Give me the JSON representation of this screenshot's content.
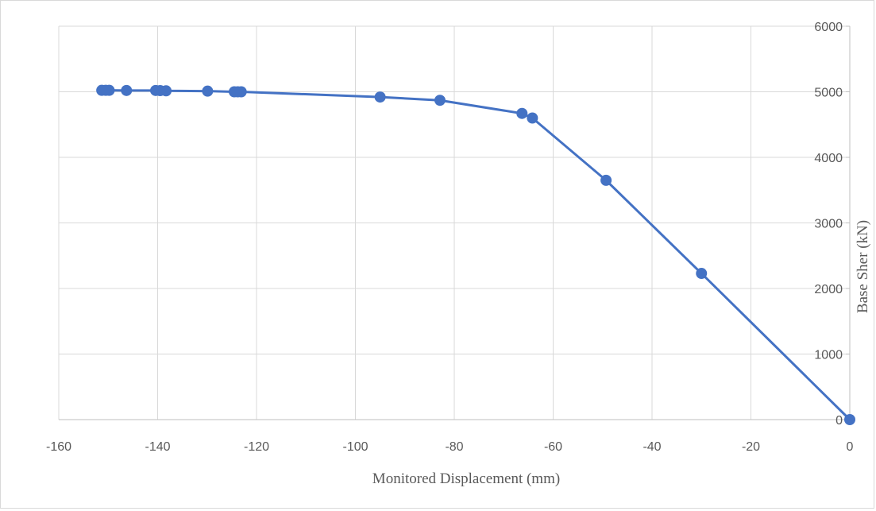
{
  "chart_data": {
    "type": "scatter",
    "xlabel": "Monitored Displacement (mm)",
    "ylabel": "Base Sher (kN)",
    "xlim": [
      -160,
      0
    ],
    "ylim": [
      0,
      6000
    ],
    "x_ticks": [
      -160,
      -140,
      -120,
      -100,
      -80,
      -60,
      -40,
      -20,
      0
    ],
    "y_ticks": [
      0,
      1000,
      2000,
      3000,
      4000,
      5000,
      6000
    ],
    "grid": true,
    "legend": "none",
    "y_axis_position": "right",
    "series_color": "#4472c4",
    "series": [
      {
        "x": [
          0,
          -30,
          -49.3,
          -64.2,
          -66.3,
          -82.9,
          -95,
          -123.1,
          -123.8,
          -124.5,
          -129.9,
          -138.3,
          -139.5,
          -140.4,
          -146.3,
          -149.8,
          -150.5,
          -151.3
        ],
        "y": [
          0,
          2230,
          3650,
          4600,
          4670,
          4870,
          4920,
          5000,
          5000,
          5000,
          5010,
          5015,
          5018,
          5020,
          5020,
          5022,
          5022,
          5022
        ]
      }
    ]
  }
}
